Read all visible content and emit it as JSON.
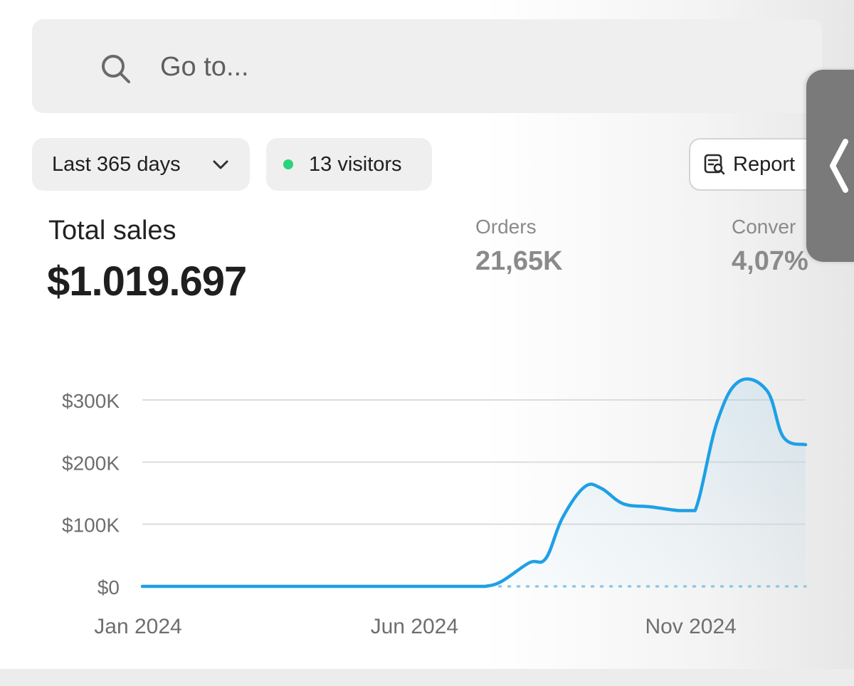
{
  "search": {
    "placeholder": "Go to..."
  },
  "filters": {
    "range_label": "Last 365 days",
    "visitors_label": "13 visitors",
    "report_label": "Report"
  },
  "metrics": {
    "total_sales": {
      "label": "Total sales",
      "value": "$1.019.697"
    },
    "orders": {
      "label": "Orders",
      "value": "21,65K"
    },
    "conversion": {
      "label": "Conver",
      "value": "4,07%"
    }
  },
  "colors": {
    "line": "#1ea0e6",
    "visitor_dot": "#2ad37a",
    "comparison_dots": "#8cc8e6"
  },
  "icons": {
    "search": "search-icon",
    "chevron": "chevron-down-icon",
    "report": "report-icon",
    "drawer": "chevron-left-icon"
  },
  "chart_data": {
    "type": "line",
    "title": "",
    "xlabel": "",
    "ylabel": "",
    "ylim": [
      0,
      300000
    ],
    "ytick_labels": [
      "$0",
      "$100K",
      "$200K",
      "$300K"
    ],
    "ytick_values": [
      0,
      100000,
      200000,
      300000
    ],
    "xtick_labels": [
      "Jan 2024",
      "Jun 2024",
      "Nov 2024"
    ],
    "xtick_months": [
      0,
      5,
      10
    ],
    "grid": true,
    "series": [
      {
        "x_months": [
          0,
          1,
          2,
          3,
          4,
          5,
          6,
          6.2,
          6.5,
          7.0,
          7.3,
          7.6,
          8.0,
          8.3,
          8.7,
          9.2,
          9.7,
          10.0,
          10.4,
          10.8,
          11.3,
          11.6,
          12.0
        ],
        "y": [
          0,
          0,
          0,
          0,
          0,
          0,
          0,
          0,
          8000,
          38000,
          45000,
          110000,
          160000,
          158000,
          133000,
          128000,
          122000,
          122000,
          265000,
          330000,
          315000,
          240000,
          228000
        ]
      },
      {
        "style": "dotted",
        "x_months": [
          6.2,
          12.0
        ],
        "y": [
          0,
          0
        ]
      }
    ]
  }
}
